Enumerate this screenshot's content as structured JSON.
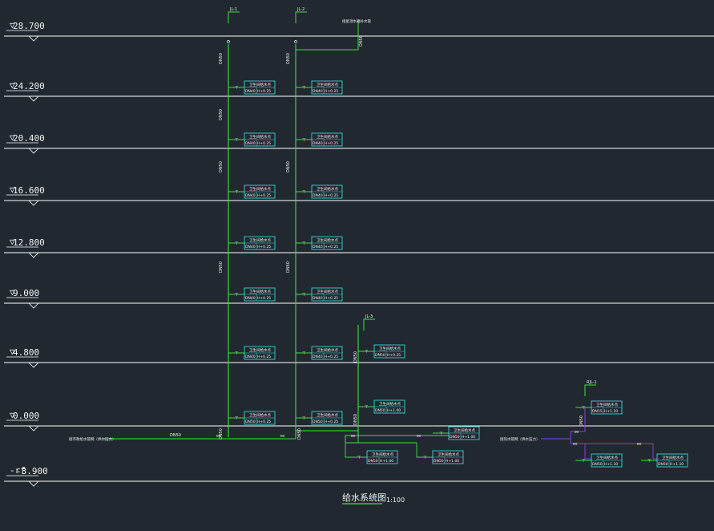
{
  "drawing": {
    "title": "给水系统图",
    "scale": "1:100"
  },
  "levels": [
    {
      "label": "28.700"
    },
    {
      "label": "24.200"
    },
    {
      "label": "20.400"
    },
    {
      "label": "16.600"
    },
    {
      "label": "12.800"
    },
    {
      "label": "9.000"
    },
    {
      "label": "4.800"
    },
    {
      "label": "0.000"
    },
    {
      "label": "-3.900"
    }
  ],
  "risers": [
    {
      "tag": "JL-1",
      "size": "DN50"
    },
    {
      "tag": "JL-2",
      "size": "DN50"
    },
    {
      "tag": "JL-3",
      "size": "DN50"
    },
    {
      "tag": "RJL-1",
      "size": "DN50"
    }
  ],
  "main": {
    "left_note": "接市政给水管网（供水压力）",
    "right_note": "接热水管网（供水压力）",
    "main_size": "DN50",
    "roof_note": "接屋顶水箱补水管"
  },
  "fixture_pipe": "DN40",
  "fixture_pipe_b": "DN50",
  "fixture_pipe_c": "DN15",
  "fixture_name": "卫生间给水点",
  "elev_a": "H+0.25",
  "elev_b": "H+1.00",
  "elev_c": "H+1.10",
  "colors": {
    "bg": "#212830",
    "line": "#ffffff",
    "green": "#3fe03f",
    "cyan": "#35d6d6",
    "purple": "#8a3fe0"
  }
}
